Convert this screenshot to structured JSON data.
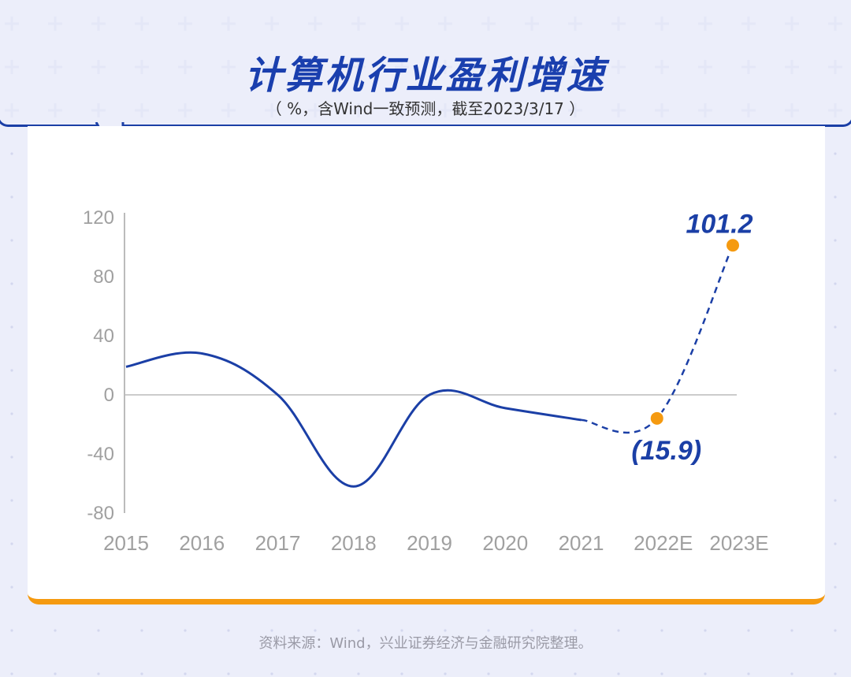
{
  "title": "计算机行业盈利增速",
  "subtitle": "（ %，含Wind一致预测，截至2023/3/17 ）",
  "source": "资料来源：Wind，兴业证券经济与金融研究院整理。",
  "colors": {
    "line": "#1b3fa6",
    "marker": "#f59a10",
    "axis": "#bbbbbb",
    "tick": "#a0a0a0",
    "card_border": "#f59a10"
  },
  "chart_data": {
    "type": "line",
    "title": "计算机行业盈利增速",
    "xlabel": "",
    "ylabel": "%",
    "categories": [
      "2015",
      "2016",
      "2017",
      "2018",
      "2019",
      "2020",
      "2021",
      "2022E",
      "2023E"
    ],
    "values": [
      19,
      28,
      0,
      -62,
      0,
      -9,
      -17,
      -15.9,
      101.2
    ],
    "estimate_start_index": 6,
    "ylim": [
      -80,
      120
    ],
    "yticks": [
      120,
      80,
      40,
      0,
      -40,
      -80
    ],
    "data_labels": [
      {
        "index": 7,
        "text": "(15.9)"
      },
      {
        "index": 8,
        "text": "101.2"
      }
    ],
    "grid": false,
    "legend": "none"
  }
}
